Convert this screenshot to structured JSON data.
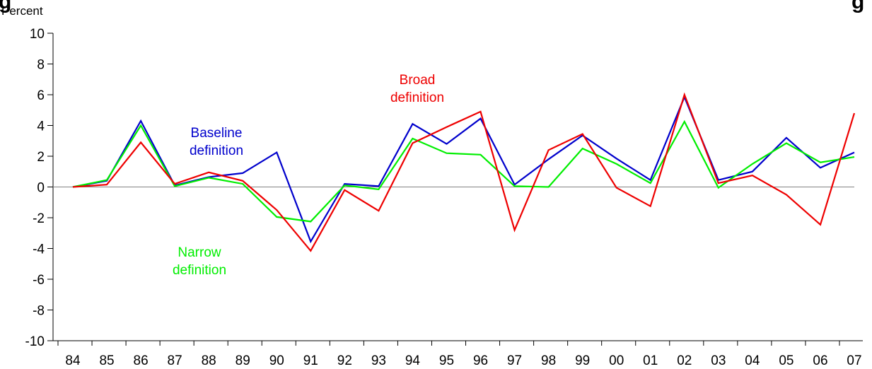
{
  "chart_data": {
    "type": "line",
    "title": "",
    "ylabel": "Percent",
    "xlabel": "",
    "ylim": [
      -10,
      10
    ],
    "y_ticks": [
      10,
      8,
      6,
      4,
      2,
      0,
      -2,
      -4,
      -6,
      -8,
      -10
    ],
    "categories": [
      "84",
      "85",
      "86",
      "87",
      "88",
      "89",
      "90",
      "91",
      "92",
      "93",
      "94",
      "95",
      "96",
      "97",
      "98",
      "99",
      "00",
      "01",
      "02",
      "03",
      "04",
      "05",
      "06",
      "07"
    ],
    "grid": false,
    "zero_line": true,
    "series": [
      {
        "name": "Baseline definition",
        "color": "#0000cc",
        "values": [
          0.0,
          0.4,
          4.3,
          0.1,
          0.65,
          0.9,
          2.25,
          -3.55,
          0.2,
          0.05,
          4.1,
          2.8,
          4.45,
          0.15,
          1.8,
          3.35,
          1.85,
          0.45,
          5.85,
          0.45,
          1.0,
          3.2,
          1.25,
          2.25
        ]
      },
      {
        "name": "Narrow definition",
        "color": "#00ee00",
        "values": [
          0.0,
          0.45,
          4.0,
          0.05,
          0.6,
          0.2,
          -1.95,
          -2.25,
          0.1,
          -0.15,
          3.15,
          2.2,
          2.1,
          0.05,
          0.0,
          2.5,
          1.5,
          0.25,
          4.25,
          -0.05,
          1.5,
          2.85,
          1.6,
          1.95
        ]
      },
      {
        "name": "Broad definition",
        "color": "#ee0000",
        "values": [
          0.0,
          0.15,
          2.9,
          0.2,
          0.95,
          0.4,
          -1.5,
          -4.15,
          -0.2,
          -1.55,
          2.85,
          3.9,
          4.9,
          -2.8,
          2.4,
          3.45,
          -0.05,
          -1.25,
          6.0,
          0.25,
          0.75,
          -0.5,
          -2.45,
          4.8
        ]
      }
    ],
    "annotations": [
      {
        "series": "Baseline definition",
        "lines": [
          "Baseline",
          "definition"
        ],
        "color": "#0000cc"
      },
      {
        "series": "Narrow definition",
        "lines": [
          "Narrow",
          "definition"
        ],
        "color": "#00ee00"
      },
      {
        "series": "Broad definition",
        "lines": [
          "Broad",
          "definition"
        ],
        "color": "#ee0000"
      }
    ]
  }
}
